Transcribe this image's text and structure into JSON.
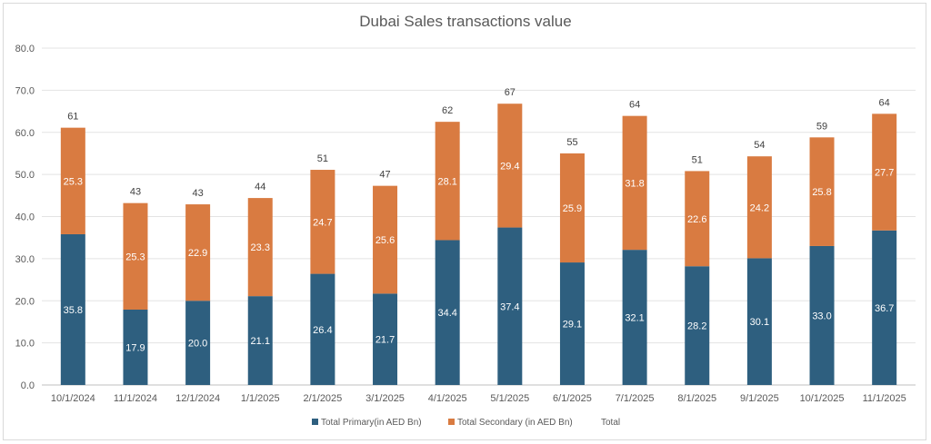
{
  "chart_data": {
    "type": "bar",
    "stacked": true,
    "title": "Dubai Sales transactions value",
    "xlabel": "",
    "ylabel": "",
    "ylim": [
      0,
      80
    ],
    "yticks": [
      "0.0",
      "10.0",
      "20.0",
      "30.0",
      "40.0",
      "50.0",
      "60.0",
      "70.0",
      "80.0"
    ],
    "ytick_values": [
      0,
      10,
      20,
      30,
      40,
      50,
      60,
      70,
      80
    ],
    "grid": true,
    "legend_position": "bottom",
    "categories": [
      "10/1/2024",
      "11/1/2024",
      "12/1/2024",
      "1/1/2025",
      "2/1/2025",
      "3/1/2025",
      "4/1/2025",
      "5/1/2025",
      "6/1/2025",
      "7/1/2025",
      "8/1/2025",
      "9/1/2025",
      "10/1/2025",
      "11/1/2025"
    ],
    "series": [
      {
        "name": "Total Primary(in AED Bn)",
        "color": "#2e5f7f",
        "values": [
          35.8,
          17.9,
          20.0,
          21.1,
          26.4,
          21.7,
          34.4,
          37.4,
          29.1,
          32.1,
          28.2,
          30.1,
          33.0,
          36.7
        ],
        "labels": [
          "35.8",
          "17.9",
          "20.0",
          "21.1",
          "26.4",
          "21.7",
          "34.4",
          "37.4",
          "29.1",
          "32.1",
          "28.2",
          "30.1",
          "33.0",
          "36.7"
        ]
      },
      {
        "name": "Total Secondary (in AED Bn)",
        "color": "#d97b41",
        "values": [
          25.3,
          25.3,
          22.9,
          23.3,
          24.7,
          25.6,
          28.1,
          29.4,
          25.9,
          31.8,
          22.6,
          24.2,
          25.8,
          27.7
        ],
        "labels": [
          "25.3",
          "25.3",
          "22.9",
          "23.3",
          "24.7",
          "25.6",
          "28.1",
          "29.4",
          "25.9",
          "31.8",
          "22.6",
          "24.2",
          "25.8",
          "27.7"
        ]
      },
      {
        "name": "Total",
        "color": "#ffffff",
        "values": [
          61,
          43,
          43,
          44,
          51,
          47,
          62,
          67,
          55,
          64,
          51,
          54,
          59,
          64
        ],
        "labels": [
          "61",
          "43",
          "43",
          "44",
          "51",
          "47",
          "62",
          "67",
          "55",
          "64",
          "51",
          "54",
          "59",
          "64"
        ]
      }
    ]
  }
}
